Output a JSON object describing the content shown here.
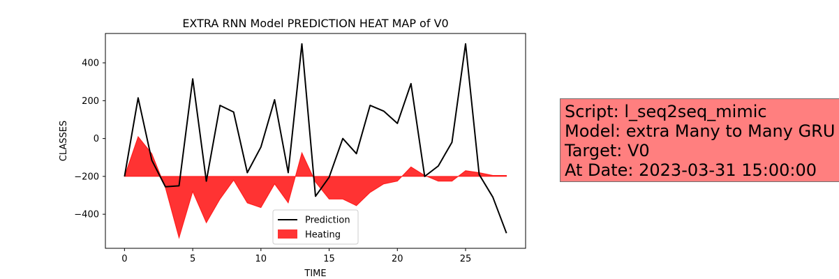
{
  "chart_data": {
    "type": "line",
    "title": "EXTRA RNN Model PREDICTION HEAT MAP of V0",
    "xlabel": "TIME",
    "ylabel": "CLASSES",
    "xlim": [
      -1.4,
      29.4
    ],
    "ylim": [
      -580,
      555
    ],
    "xticks": [
      0,
      5,
      10,
      15,
      20,
      25
    ],
    "yticks": [
      -400,
      -200,
      0,
      200,
      400
    ],
    "grid": false,
    "legend_position": "lower-center",
    "x": [
      0,
      1,
      2,
      3,
      4,
      5,
      6,
      7,
      8,
      9,
      10,
      11,
      12,
      13,
      14,
      15,
      16,
      17,
      18,
      19,
      20,
      21,
      22,
      23,
      24,
      25,
      26,
      27,
      28
    ],
    "series": [
      {
        "name": "Prediction",
        "style": "line",
        "color": "#000000",
        "values": [
          -200,
          215,
          -115,
          -255,
          -250,
          315,
          -225,
          175,
          140,
          -180,
          -45,
          205,
          -180,
          500,
          -305,
          -205,
          0,
          -80,
          175,
          145,
          80,
          290,
          -200,
          -145,
          -20,
          500,
          -190,
          -310,
          -500
        ]
      },
      {
        "name": "Heating",
        "style": "fill_between",
        "color": "#ff0000",
        "baseline": -200,
        "values": [
          -200,
          10,
          -80,
          -260,
          -525,
          -280,
          -445,
          -320,
          -220,
          -340,
          -365,
          -240,
          -340,
          -75,
          -230,
          -320,
          -320,
          -355,
          -285,
          -240,
          -225,
          -150,
          -195,
          -225,
          -225,
          -170,
          -180,
          -195,
          -195
        ]
      }
    ]
  },
  "info_box": {
    "lines": [
      "Script: l_seq2seq_mimic",
      "Model: extra Many to Many GRU",
      "Target: V0",
      "At Date: 2023-03-31 15:00:00"
    ],
    "background": "#ff7f7f"
  }
}
